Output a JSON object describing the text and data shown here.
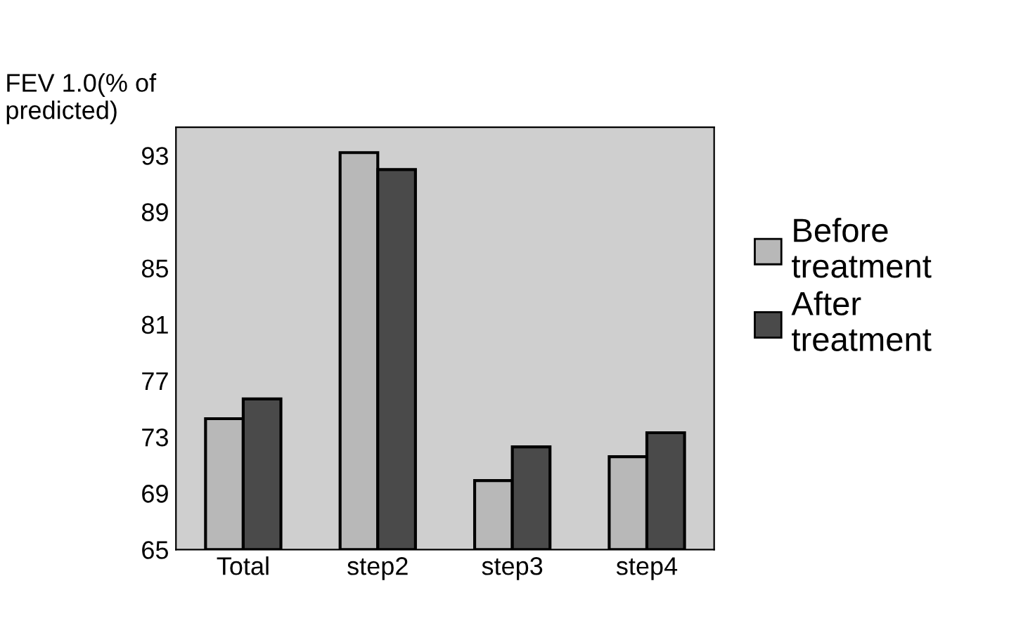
{
  "chart_data": {
    "type": "bar",
    "ylabel": "FEV 1.0(% of\npredicted)",
    "categories": [
      "Total",
      "step2",
      "step3",
      "step4"
    ],
    "series": [
      {
        "name": "Before\ntreatment",
        "color": "#b8b8b8",
        "values": [
          74.3,
          93.2,
          69.9,
          71.6
        ]
      },
      {
        "name": "After\ntreatment",
        "color": "#4a4a4a",
        "values": [
          75.7,
          92.0,
          72.3,
          73.3
        ]
      }
    ],
    "ylim": [
      65,
      95
    ],
    "yticks": [
      65,
      69,
      73,
      77,
      81,
      85,
      89,
      93
    ],
    "grid": false,
    "legend": "right"
  }
}
